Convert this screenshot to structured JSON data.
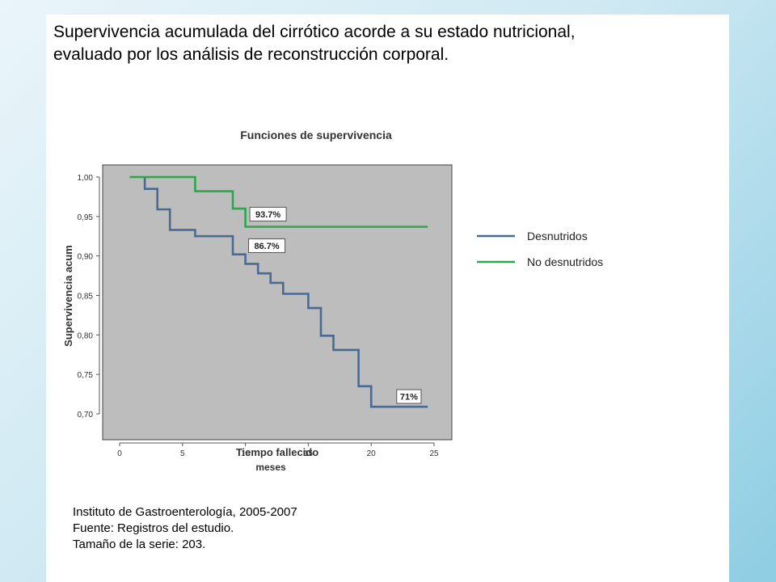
{
  "slide": {
    "title_lines": [
      "Supervivencia acumulada del cirrótico acorde a su estado nutricional,",
      "evaluado por los análisis de reconstrucción corporal."
    ],
    "footer_lines": [
      "Instituto de Gastroenterología, 2005-2007",
      "Fuente: Registros del estudio.",
      "Tamaño de la serie: 203."
    ]
  },
  "chart_data": {
    "type": "line",
    "step": true,
    "title": "Funciones de supervivencia",
    "xlabel": "Tiempo fallecido",
    "xlabel_sub": "meses",
    "ylabel": "Supervivencia acum",
    "xlim": [
      0,
      25
    ],
    "ylim": [
      0.7,
      1.0
    ],
    "x_ticks": [
      0,
      5,
      10,
      15,
      20,
      25
    ],
    "x_tick_labels": [
      "0",
      "5",
      "10",
      "15",
      "20",
      "25"
    ],
    "y_ticks": [
      0.7,
      0.75,
      0.8,
      0.85,
      0.9,
      0.95,
      1.0
    ],
    "y_tick_labels": [
      "0,70",
      "0,75",
      "0,80",
      "0,85",
      "0,90",
      "0,95",
      "1,00"
    ],
    "grid": false,
    "legend_position": "right",
    "plot_background": "#bdbdbd",
    "series": [
      {
        "name": "Desnutridos",
        "color": "#4a6a93",
        "x": [
          2,
          2,
          3,
          3,
          4,
          4,
          6,
          6,
          9,
          9,
          10,
          10,
          11,
          11,
          12,
          12,
          13,
          13,
          15,
          15,
          16,
          16,
          17,
          17,
          19,
          19,
          20,
          20,
          24.5
        ],
        "y": [
          1.0,
          0.985,
          0.985,
          0.959,
          0.959,
          0.933,
          0.933,
          0.925,
          0.925,
          0.902,
          0.902,
          0.89,
          0.89,
          0.878,
          0.878,
          0.866,
          0.866,
          0.852,
          0.852,
          0.834,
          0.834,
          0.799,
          0.799,
          0.781,
          0.781,
          0.735,
          0.735,
          0.709,
          0.709
        ]
      },
      {
        "name": "No desnutridos",
        "color": "#2aa84a",
        "x": [
          0.8,
          6,
          6,
          9,
          9,
          10,
          10,
          24.5
        ],
        "y": [
          1.0,
          1.0,
          0.982,
          0.982,
          0.96,
          0.96,
          0.937,
          0.937
        ]
      }
    ],
    "annotations": [
      {
        "text": "93.7%",
        "x": 11.8,
        "y": 0.953
      },
      {
        "text": "86.7%",
        "x": 11.7,
        "y": 0.913
      },
      {
        "text": "71%",
        "x": 23.0,
        "y": 0.722
      }
    ]
  }
}
